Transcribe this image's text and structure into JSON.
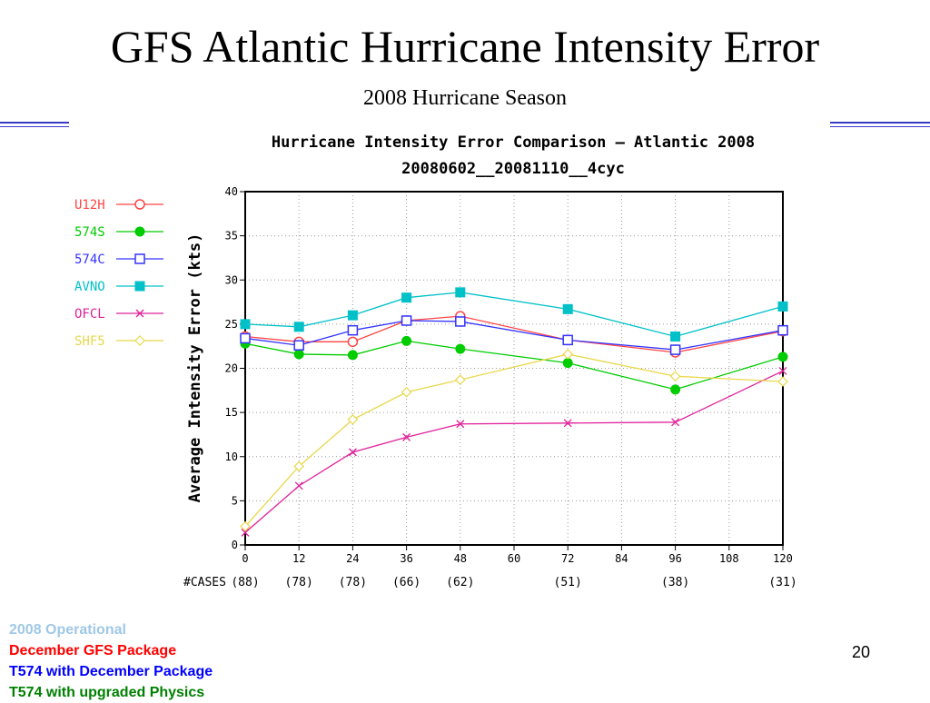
{
  "slide": {
    "title": "GFS Atlantic Hurricane Intensity Error",
    "subtitle": "2008 Hurricane Season",
    "page_number": "20",
    "footer_notes": [
      {
        "text": "2008 Operational",
        "color": "#9fc8e6"
      },
      {
        "text": "December GFS Package",
        "color": "#ff0000"
      },
      {
        "text": "T574 with December Package",
        "color": "#0000ff"
      },
      {
        "text": "T574 with upgraded Physics",
        "color": "#008000"
      }
    ],
    "accent_color": "#3a3ac8"
  },
  "chart_data": {
    "type": "line",
    "title": "Hurricane Intensity Error Comparison — Atlantic 2008",
    "subtitle": "20080602__20081110__4cyc",
    "xlabel": "",
    "ylabel": "Average Intensity Error (kts)",
    "xlim": [
      0,
      120
    ],
    "ylim": [
      0,
      40
    ],
    "x_ticks": [
      0,
      12,
      24,
      36,
      48,
      60,
      72,
      84,
      96,
      108,
      120
    ],
    "y_ticks": [
      0,
      5,
      10,
      15,
      20,
      25,
      30,
      35,
      40
    ],
    "x": [
      0,
      12,
      24,
      36,
      48,
      72,
      96,
      120
    ],
    "cases_label": "#CASES",
    "cases": [
      {
        "x": 0,
        "label": "(88)"
      },
      {
        "x": 12,
        "label": "(78)"
      },
      {
        "x": 24,
        "label": "(78)"
      },
      {
        "x": 36,
        "label": "(66)"
      },
      {
        "x": 48,
        "label": "(62)"
      },
      {
        "x": 72,
        "label": "(51)"
      },
      {
        "x": 96,
        "label": "(38)"
      },
      {
        "x": 120,
        "label": "(31)"
      }
    ],
    "legend_position": "left",
    "grid": true,
    "series": [
      {
        "name": "U12H",
        "color": "#ff4444",
        "marker": "circle-open",
        "values": [
          23.6,
          23.0,
          23.0,
          25.4,
          25.9,
          23.2,
          21.8,
          24.2
        ]
      },
      {
        "name": "574S",
        "color": "#00cc00",
        "marker": "circle-filled",
        "values": [
          22.8,
          21.6,
          21.5,
          23.1,
          22.2,
          20.6,
          17.6,
          21.3
        ]
      },
      {
        "name": "574C",
        "color": "#3333ff",
        "marker": "square-open",
        "values": [
          23.4,
          22.6,
          24.3,
          25.4,
          25.3,
          23.2,
          22.1,
          24.3
        ]
      },
      {
        "name": "AVNO",
        "color": "#00c0c8",
        "marker": "square-filled",
        "values": [
          25.0,
          24.7,
          26.0,
          28.0,
          28.6,
          26.7,
          23.6,
          27.0
        ]
      },
      {
        "name": "OFCL",
        "color": "#e0209a",
        "marker": "x",
        "values": [
          1.4,
          6.7,
          10.5,
          12.2,
          13.7,
          13.8,
          13.9,
          19.7
        ]
      },
      {
        "name": "SHF5",
        "color": "#e8d84a",
        "marker": "diamond-open",
        "values": [
          2.1,
          8.9,
          14.2,
          17.3,
          18.7,
          21.6,
          19.1,
          18.5
        ]
      }
    ]
  }
}
